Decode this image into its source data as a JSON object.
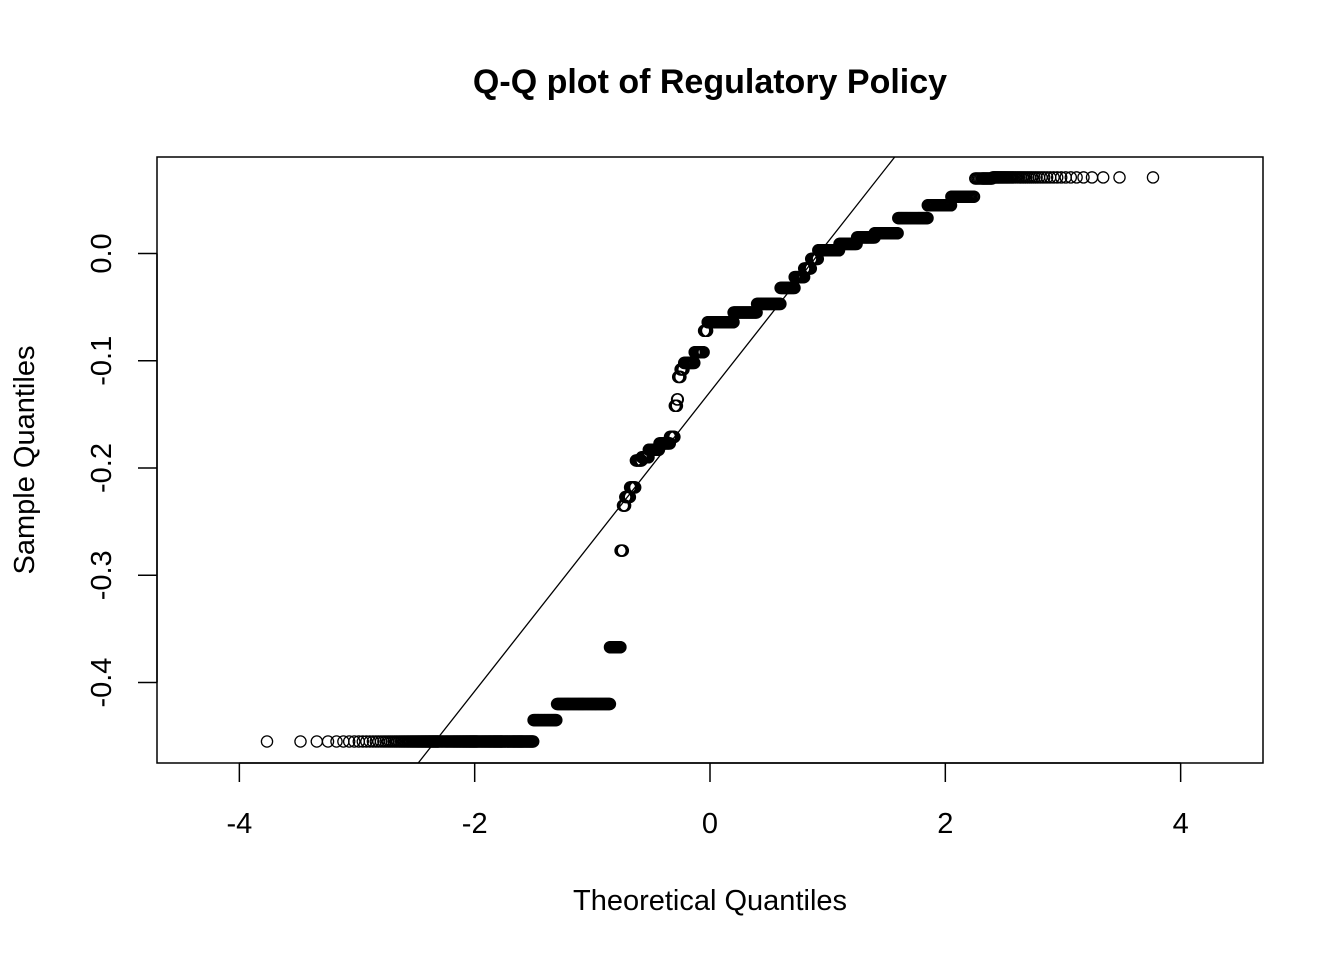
{
  "chart_data": {
    "type": "scatter",
    "title": "Q-Q plot of Regulatory Policy",
    "xlabel": "Theoretical Quantiles",
    "ylabel": "Sample Quantiles",
    "xlim": [
      -4.7,
      4.7
    ],
    "ylim": [
      -0.475,
      0.09
    ],
    "x_ticks": [
      -4,
      -2,
      0,
      2,
      4
    ],
    "x_tick_labels": [
      "-4",
      "-2",
      "0",
      "2",
      "4"
    ],
    "y_ticks": [
      -0.4,
      -0.3,
      -0.2,
      -0.1,
      0.0
    ],
    "y_tick_labels": [
      "-0.4",
      "-0.3",
      "-0.2",
      "-0.1",
      "0.0"
    ],
    "marker": "open-circle",
    "grid": false,
    "legend": "none",
    "sample_size": 6000,
    "quantile_steps": [
      {
        "x_from": -4.35,
        "x_to": -1.5,
        "y": -0.455
      },
      {
        "x_from": -1.5,
        "x_to": -1.3,
        "y": -0.435
      },
      {
        "x_from": -1.3,
        "x_to": -0.85,
        "y": -0.42
      },
      {
        "x_from": -0.85,
        "x_to": -0.76,
        "y": -0.367
      },
      {
        "x_from": -0.76,
        "x_to": -0.74,
        "y": -0.277
      },
      {
        "x_from": -0.74,
        "x_to": -0.72,
        "y": -0.235
      },
      {
        "x_from": -0.72,
        "x_to": -0.68,
        "y": -0.227
      },
      {
        "x_from": -0.68,
        "x_to": -0.63,
        "y": -0.218
      },
      {
        "x_from": -0.63,
        "x_to": -0.58,
        "y": -0.193
      },
      {
        "x_from": -0.58,
        "x_to": -0.52,
        "y": -0.19
      },
      {
        "x_from": -0.52,
        "x_to": -0.43,
        "y": -0.183
      },
      {
        "x_from": -0.43,
        "x_to": -0.34,
        "y": -0.177
      },
      {
        "x_from": -0.34,
        "x_to": -0.3,
        "y": -0.171
      },
      {
        "x_from": -0.3,
        "x_to": -0.28,
        "y": -0.142
      },
      {
        "x_from": -0.28,
        "x_to": -0.27,
        "y": -0.136
      },
      {
        "x_from": -0.27,
        "x_to": -0.25,
        "y": -0.115
      },
      {
        "x_from": -0.25,
        "x_to": -0.22,
        "y": -0.108
      },
      {
        "x_from": -0.22,
        "x_to": -0.13,
        "y": -0.102
      },
      {
        "x_from": -0.13,
        "x_to": -0.05,
        "y": -0.092
      },
      {
        "x_from": -0.05,
        "x_to": -0.02,
        "y": -0.072
      },
      {
        "x_from": -0.02,
        "x_to": 0.2,
        "y": -0.064
      },
      {
        "x_from": 0.2,
        "x_to": 0.4,
        "y": -0.055
      },
      {
        "x_from": 0.4,
        "x_to": 0.6,
        "y": -0.047
      },
      {
        "x_from": 0.6,
        "x_to": 0.72,
        "y": -0.032
      },
      {
        "x_from": 0.72,
        "x_to": 0.8,
        "y": -0.022
      },
      {
        "x_from": 0.8,
        "x_to": 0.86,
        "y": -0.014
      },
      {
        "x_from": 0.86,
        "x_to": 0.92,
        "y": -0.005
      },
      {
        "x_from": 0.92,
        "x_to": 1.1,
        "y": 0.003
      },
      {
        "x_from": 1.1,
        "x_to": 1.25,
        "y": 0.009
      },
      {
        "x_from": 1.25,
        "x_to": 1.4,
        "y": 0.015
      },
      {
        "x_from": 1.4,
        "x_to": 1.6,
        "y": 0.019
      },
      {
        "x_from": 1.6,
        "x_to": 1.85,
        "y": 0.033
      },
      {
        "x_from": 1.85,
        "x_to": 2.05,
        "y": 0.045
      },
      {
        "x_from": 2.05,
        "x_to": 2.25,
        "y": 0.053
      },
      {
        "x_from": 2.25,
        "x_to": 2.4,
        "y": 0.07
      },
      {
        "x_from": 2.4,
        "x_to": 4.35,
        "y": 0.071
      }
    ],
    "reference_line": {
      "x1": -2.48,
      "y1": -0.475,
      "x2": 1.57,
      "y2": 0.09
    }
  }
}
